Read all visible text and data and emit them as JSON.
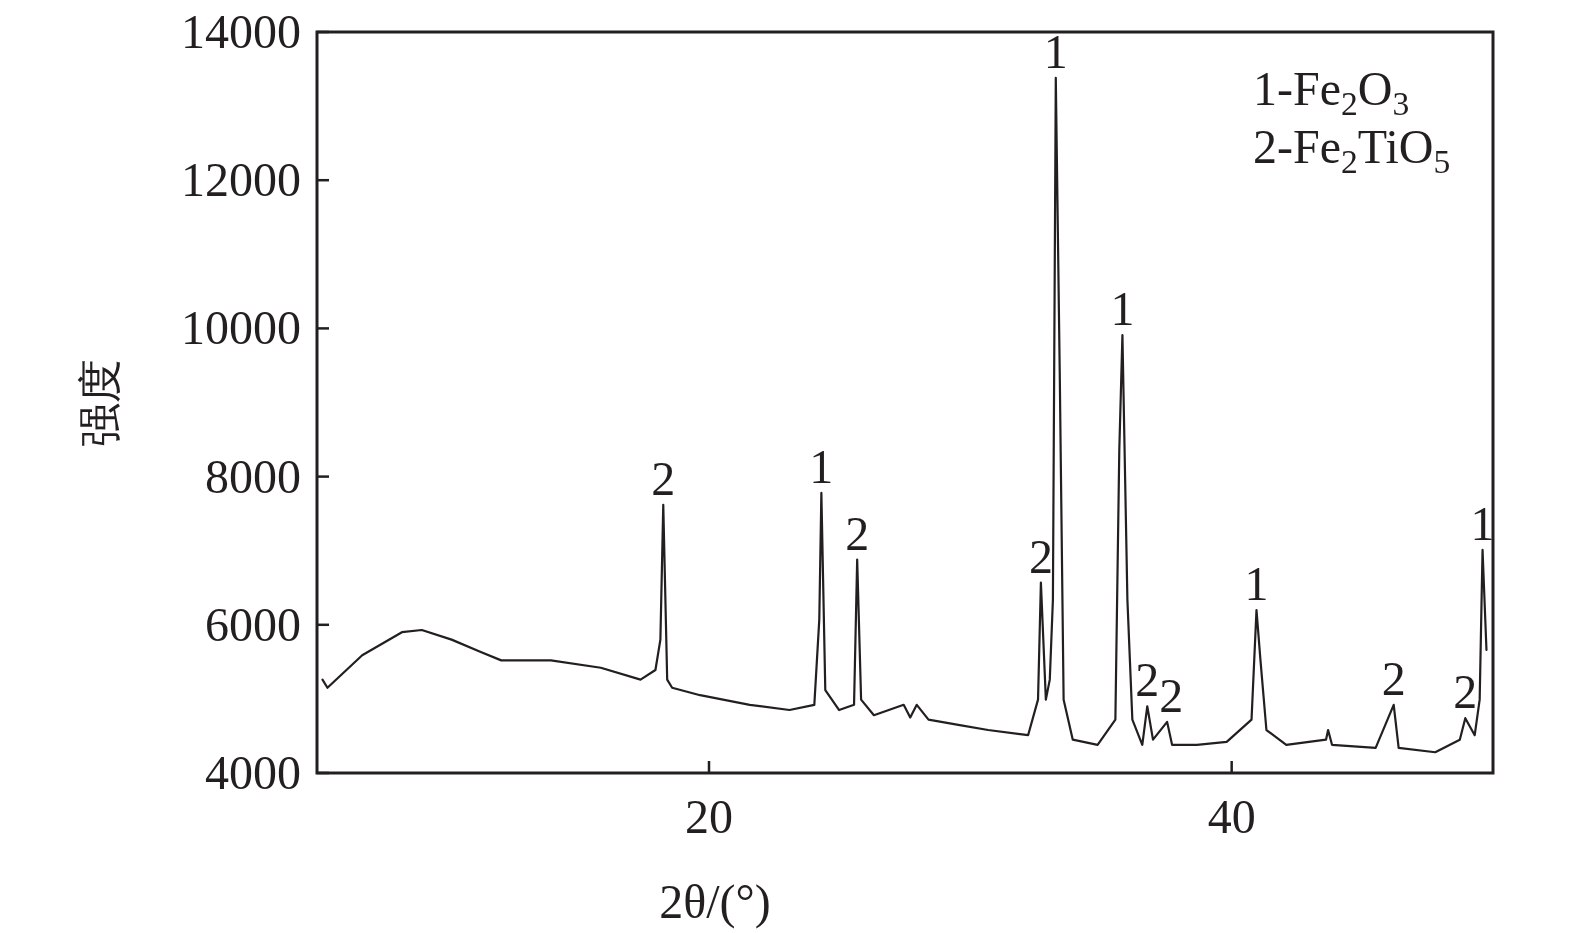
{
  "chart_data": {
    "type": "line",
    "xlabel": "2θ/(°)",
    "ylabel": "强度",
    "xlim": [
      5,
      50
    ],
    "ylim": [
      4000,
      14000
    ],
    "xticks": [
      20,
      40
    ],
    "yticks": [
      4000,
      6000,
      8000,
      10000,
      12000,
      14000
    ],
    "grid": false,
    "marker": "none",
    "line_style": "solid",
    "series": [
      {
        "color": "#231f20",
        "x": [
          5.21,
          5.4,
          6.73,
          8.25,
          9.01,
          10.15,
          11.29,
          12.05,
          13.95,
          15.86,
          17.38,
          17.95,
          18.14,
          18.25,
          18.4,
          18.59,
          19.66,
          21.56,
          23.08,
          24.03,
          24.22,
          24.3,
          24.45,
          24.98,
          25.55,
          25.67,
          25.82,
          26.31,
          27.45,
          27.7,
          27.95,
          28.4,
          29.54,
          30.68,
          32.21,
          32.59,
          32.7,
          32.89,
          33.04,
          33.16,
          33.27,
          33.42,
          33.57,
          33.92,
          34.87,
          35.55,
          35.7,
          35.82,
          36.01,
          36.2,
          36.58,
          36.77,
          36.99,
          37.53,
          37.72,
          38.67,
          39.81,
          40.76,
          40.95,
          41.1,
          41.33,
          42.09,
          43.61,
          43.69,
          43.84,
          45.51,
          46.2,
          46.39,
          47.79,
          48.73,
          48.94,
          49.3,
          49.49,
          49.6,
          49.75
        ],
        "values": [
          5260,
          5150,
          5590,
          5900,
          5930,
          5800,
          5630,
          5520,
          5520,
          5420,
          5260,
          5390,
          5800,
          7620,
          5260,
          5150,
          5050,
          4920,
          4850,
          4920,
          6070,
          7780,
          5120,
          4850,
          4920,
          6880,
          4990,
          4780,
          4920,
          4750,
          4920,
          4720,
          4650,
          4580,
          4510,
          4990,
          6570,
          4990,
          5260,
          6340,
          13380,
          9440,
          4990,
          4450,
          4380,
          4720,
          8360,
          9910,
          6340,
          4720,
          4380,
          4900,
          4450,
          4690,
          4380,
          4380,
          4420,
          4720,
          6200,
          5530,
          4580,
          4380,
          4450,
          4580,
          4380,
          4340,
          4920,
          4340,
          4280,
          4450,
          4740,
          4510,
          4990,
          7010,
          5660
        ]
      }
    ],
    "annotations": [
      {
        "text": "2",
        "x": 18.25,
        "y": 7620
      },
      {
        "text": "1",
        "x": 24.3,
        "y": 7780
      },
      {
        "text": "2",
        "x": 25.67,
        "y": 6880
      },
      {
        "text": "2",
        "x": 32.7,
        "y": 6570
      },
      {
        "text": "1",
        "x": 33.27,
        "y": 13380
      },
      {
        "text": "1",
        "x": 35.82,
        "y": 9910
      },
      {
        "text": "2",
        "x": 36.77,
        "y": 4900
      },
      {
        "text": "2",
        "x": 37.53,
        "y": 4690
      },
      {
        "text": "1",
        "x": 40.95,
        "y": 6200
      },
      {
        "text": "2",
        "x": 46.2,
        "y": 4920
      },
      {
        "text": "2",
        "x": 48.94,
        "y": 4740
      },
      {
        "text": "1",
        "x": 49.6,
        "y": 7010
      },
      "1-Fe$_{2}$O$_{3}$",
      "2-Fe$_{2}$TiO$_{5}$"
    ]
  }
}
